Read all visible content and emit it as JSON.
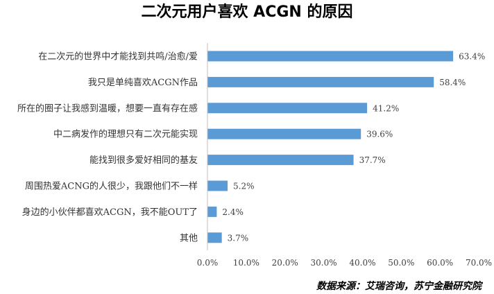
{
  "chart_data": {
    "type": "bar",
    "orientation": "horizontal",
    "title": "二次元用户喜欢 ACGN 的原因",
    "categories": [
      "在二次元的世界中才能找到共鸣/治愈/爱",
      "我只是单纯喜欢ACGN作品",
      "所在的圈子让我感到温暖，想要一直有存在感",
      "中二病发作的理想只有二次元能实现",
      "能找到很多爱好相同的基友",
      "周围热爱ACNG的人很少，我跟他们不一样",
      "身边的小伙伴都喜欢ACGN，我不能OUT了",
      "其他"
    ],
    "values": [
      63.4,
      58.4,
      41.2,
      39.6,
      37.7,
      5.2,
      2.4,
      3.7
    ],
    "value_labels": [
      "63.4%",
      "58.4%",
      "41.2%",
      "39.6%",
      "37.7%",
      "5.2%",
      "2.4%",
      "3.7%"
    ],
    "xlim": [
      0,
      70
    ],
    "x_ticks": [
      0,
      10,
      20,
      30,
      40,
      50,
      60,
      70
    ],
    "x_tick_labels": [
      "0.0%",
      "10.0%",
      "20.0%",
      "30.0%",
      "40.0%",
      "50.0%",
      "60.0%",
      "70.0%"
    ],
    "xlabel": "",
    "ylabel": "",
    "grid": false,
    "bar_color": "#5b9bd5"
  },
  "source_note": "数据来源：艾瑞咨询，苏宁金融研究院"
}
